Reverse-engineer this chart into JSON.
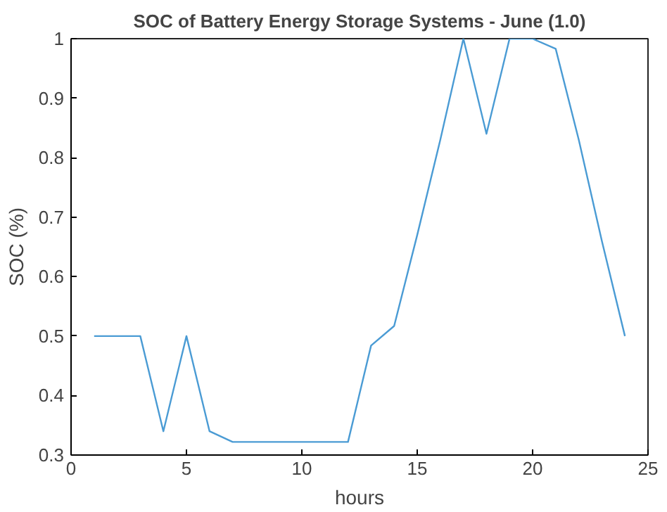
{
  "chart_data": {
    "type": "line",
    "title": "SOC of Battery Energy Storage Systems - June (1.0)",
    "xlabel": "hours",
    "ylabel": "SOC (%)",
    "x": [
      1,
      2,
      3,
      4,
      5,
      6,
      7,
      8,
      9,
      10,
      11,
      12,
      13,
      14,
      15,
      16,
      17,
      18,
      19,
      20,
      21,
      22,
      23,
      24
    ],
    "series": [
      {
        "color": "#4a9bd4",
        "values": [
          0.5,
          0.5,
          0.5,
          0.34,
          0.5,
          0.34,
          0.322,
          0.322,
          0.322,
          0.322,
          0.322,
          0.322,
          0.484,
          0.517,
          0.67,
          0.83,
          1.0,
          0.84,
          1.0,
          1.0,
          0.983,
          0.83,
          0.66,
          0.5
        ]
      }
    ],
    "xlim": [
      0,
      25
    ],
    "ylim": [
      0.3,
      1
    ],
    "xticks": [
      0,
      5,
      10,
      15,
      20,
      25
    ],
    "yticks": [
      0.3,
      0.4,
      0.5,
      0.6,
      0.7,
      0.8,
      0.9,
      1
    ]
  }
}
